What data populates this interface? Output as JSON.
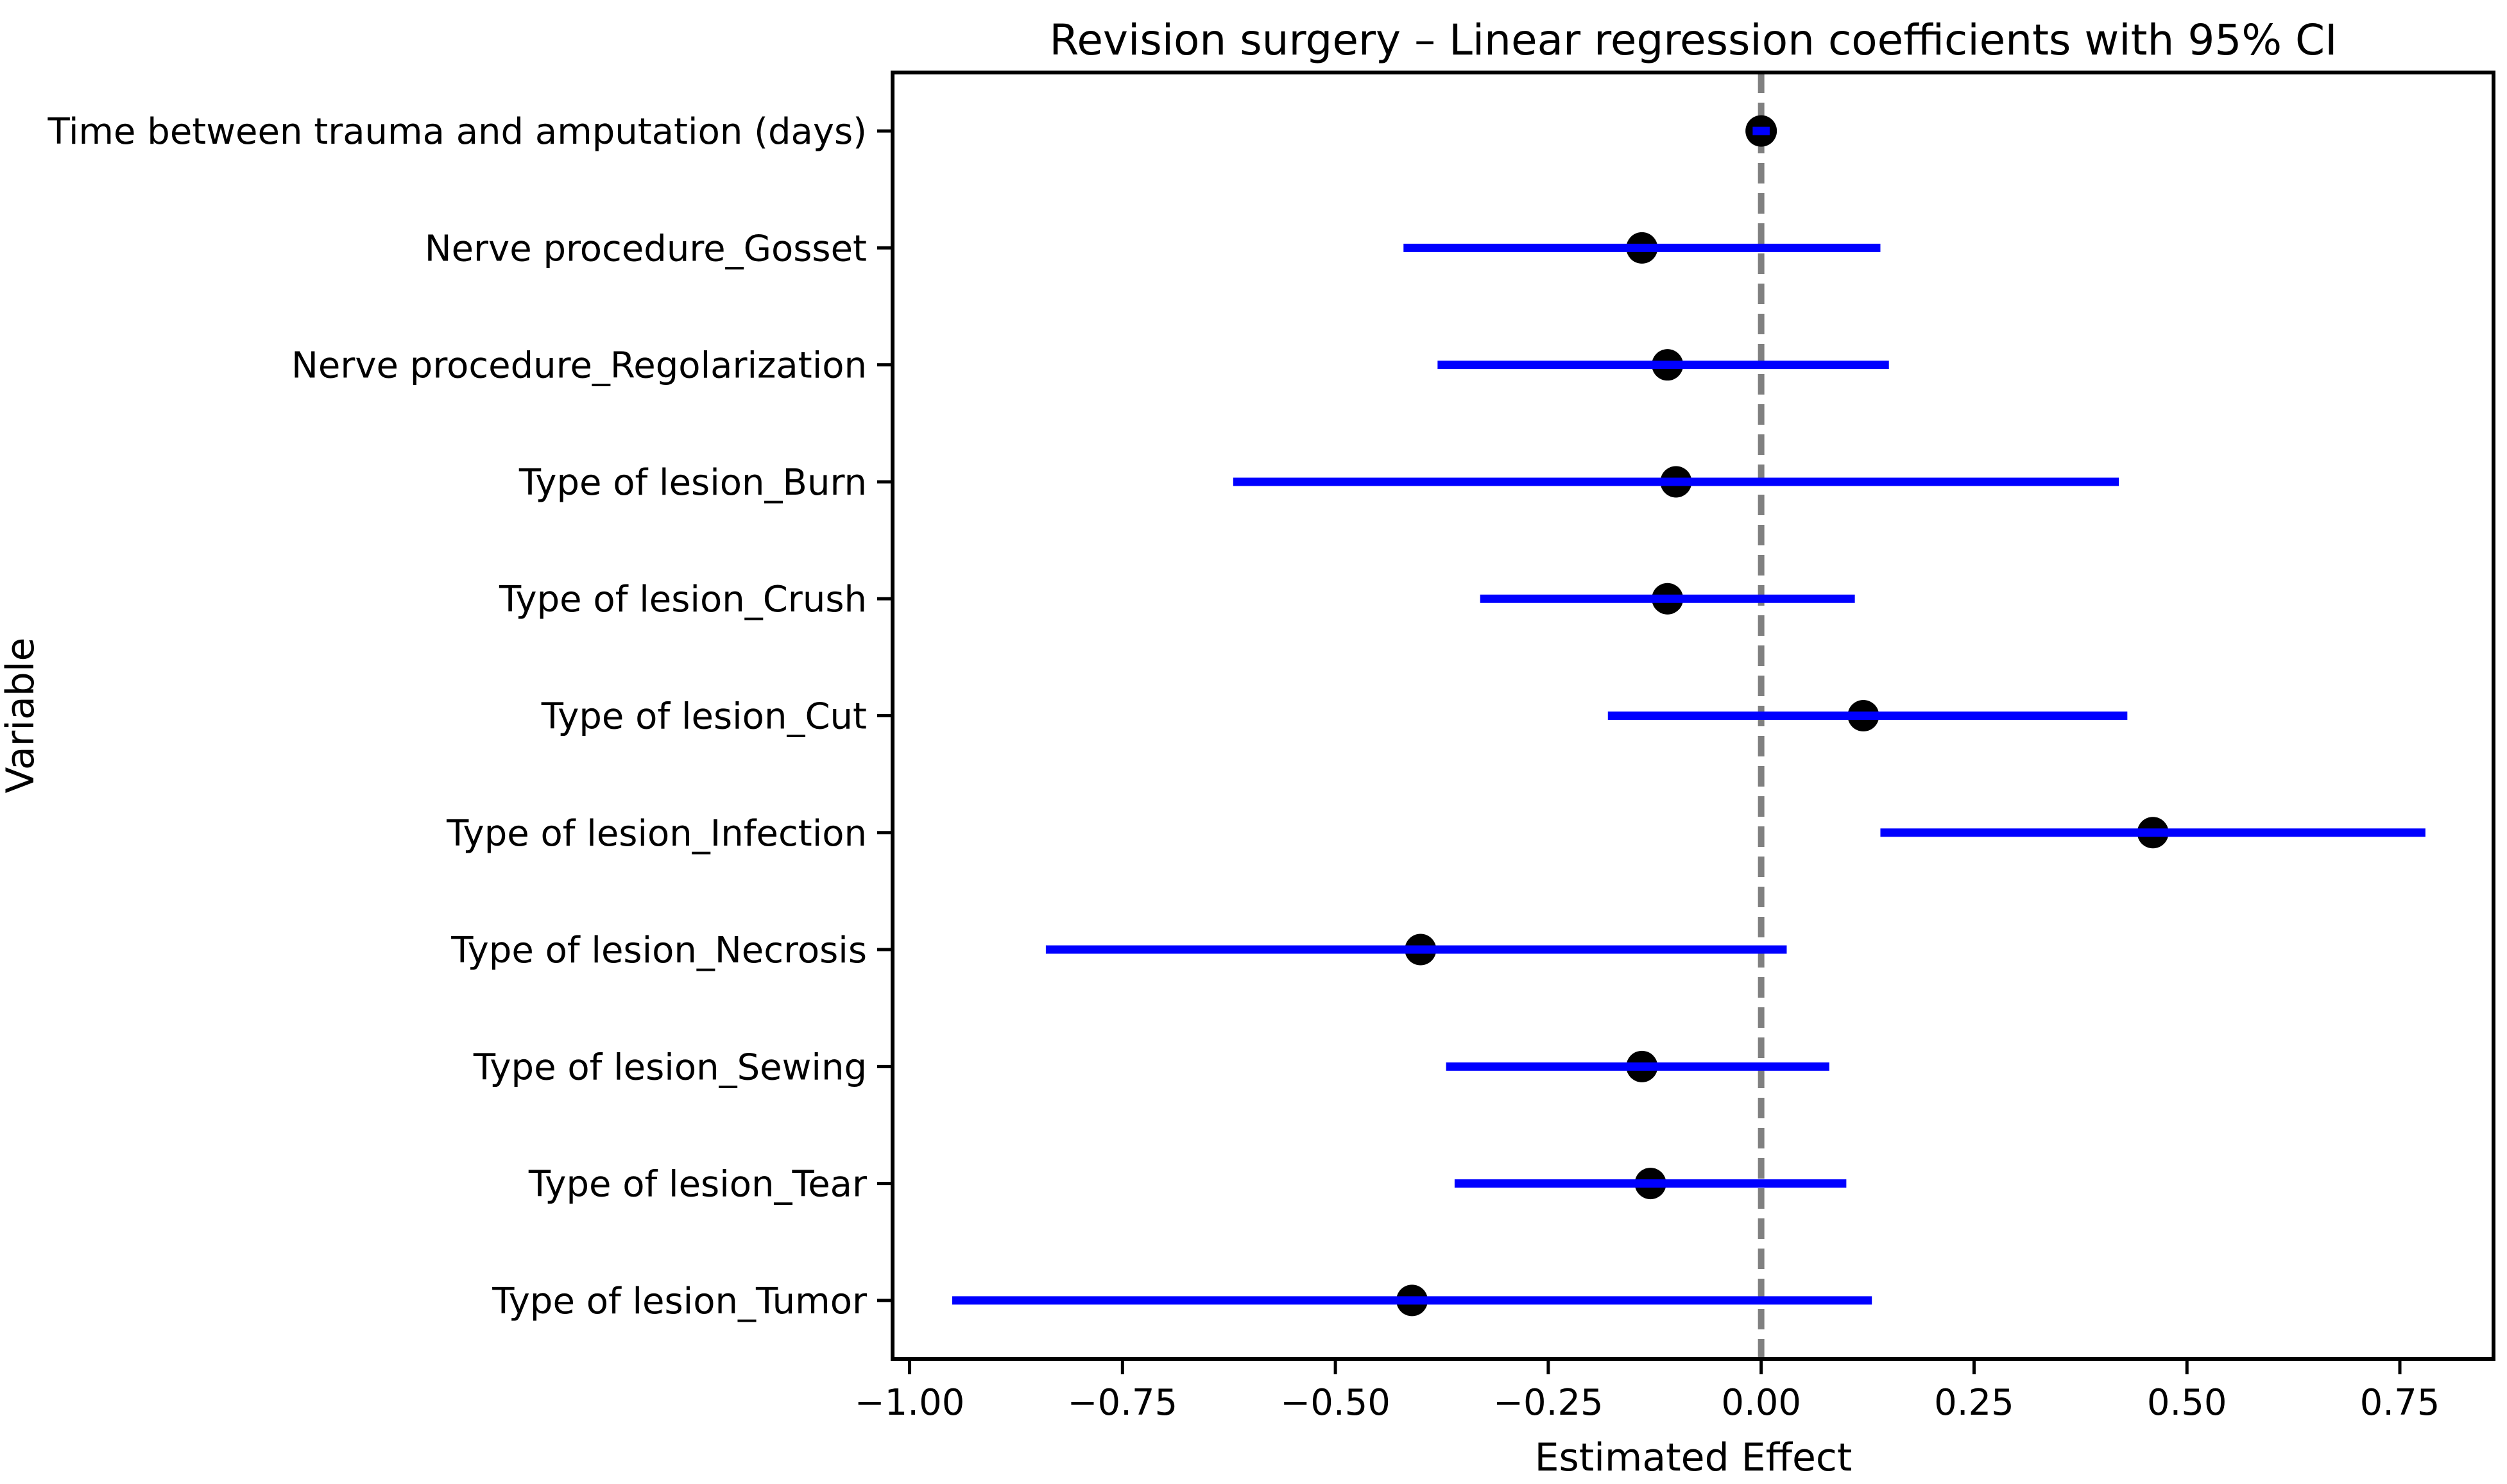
{
  "figure": {
    "title": "Revision surgery – Linear regression coefficients with 95% CI",
    "xlabel": "Estimated Effect",
    "ylabel": "Variable"
  },
  "colors": {
    "ci_line": "#0000ff",
    "marker": "#000000",
    "zero_line": "#808080",
    "axis": "#000000",
    "background": "#ffffff"
  },
  "chart_data": {
    "type": "scatter",
    "subtype": "forest-errorbar-horizontal",
    "title": "Revision surgery – Linear regression coefficients with 95% CI",
    "xlabel": "Estimated Effect",
    "ylabel": "Variable",
    "xlim": [
      -1.02,
      0.86
    ],
    "zero_line_x": 0.0,
    "grid": false,
    "legend": "none",
    "x_ticks": [
      -1.0,
      -0.75,
      -0.5,
      -0.25,
      0.0,
      0.25,
      0.5,
      0.75
    ],
    "x_tick_labels": [
      "−1.00",
      "−0.75",
      "−0.50",
      "−0.25",
      "0.00",
      "0.25",
      "0.50",
      "0.75"
    ],
    "categories": [
      "Time between trauma and amputation (days)",
      "Nerve procedure_Gosset",
      "Nerve procedure_Regolarization",
      "Type of lesion_Burn",
      "Type of lesion_Crush",
      "Type of lesion_Cut",
      "Type of lesion_Infection",
      "Type of lesion_Necrosis",
      "Type of lesion_Sewing",
      "Type of lesion_Tear",
      "Type of lesion_Tumor"
    ],
    "points": [
      {
        "label": "Time between trauma and amputation (days)",
        "coef": 0.0,
        "ci_low": -0.01,
        "ci_high": 0.01
      },
      {
        "label": "Nerve procedure_Gosset",
        "coef": -0.14,
        "ci_low": -0.42,
        "ci_high": 0.14
      },
      {
        "label": "Nerve procedure_Regolarization",
        "coef": -0.11,
        "ci_low": -0.38,
        "ci_high": 0.15
      },
      {
        "label": "Type of lesion_Burn",
        "coef": -0.1,
        "ci_low": -0.62,
        "ci_high": 0.42
      },
      {
        "label": "Type of lesion_Crush",
        "coef": -0.11,
        "ci_low": -0.33,
        "ci_high": 0.11
      },
      {
        "label": "Type of lesion_Cut",
        "coef": 0.12,
        "ci_low": -0.18,
        "ci_high": 0.43
      },
      {
        "label": "Type of lesion_Infection",
        "coef": 0.46,
        "ci_low": 0.14,
        "ci_high": 0.78
      },
      {
        "label": "Type of lesion_Necrosis",
        "coef": -0.4,
        "ci_low": -0.84,
        "ci_high": 0.03
      },
      {
        "label": "Type of lesion_Sewing",
        "coef": -0.14,
        "ci_low": -0.37,
        "ci_high": 0.08
      },
      {
        "label": "Type of lesion_Tear",
        "coef": -0.13,
        "ci_low": -0.36,
        "ci_high": 0.1
      },
      {
        "label": "Type of lesion_Tumor",
        "coef": -0.41,
        "ci_low": -0.95,
        "ci_high": 0.13
      }
    ]
  }
}
